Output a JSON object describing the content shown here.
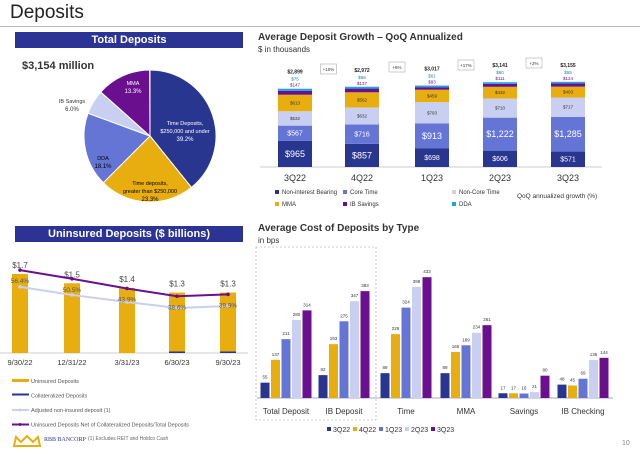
{
  "page": {
    "title": "Deposits",
    "page_number": "10",
    "footnote": "(1) Excludes REIT and Holdco Cash",
    "logo_text": "RBB BANCORP"
  },
  "colors": {
    "navy": "#28368f",
    "core": "#6575d6",
    "noncore": "#c9cff0",
    "mma": "#e8ae10",
    "ibsav": "#6a0f8e",
    "dda": "#1aa7e0",
    "header": "#2b3494"
  },
  "total_deposits": {
    "header": "Total Deposits",
    "amount": "$3,154 million"
  },
  "uninsured": {
    "header": "Uninsured Deposits ($ billions)"
  },
  "growth": {
    "title": "Average Deposit Growth – QoQ Annualized",
    "subtitle": "$ in thousands",
    "growth_label": "QoQ annualized growth (%)"
  },
  "cost": {
    "title": "Average Cost of Deposits by Type",
    "subtitle": "in bps"
  },
  "chart_data": [
    {
      "type": "pie",
      "slices": [
        {
          "label": "Time Deposits, $250,000 and under",
          "pct_label": "39.2%",
          "value": 39.2,
          "color": "#28368f"
        },
        {
          "label": "Time deposits, greater than $250,000",
          "pct_label": "23.3%",
          "value": 23.3,
          "color": "#e8ae10"
        },
        {
          "label": "DDA",
          "pct_label": "18.1%",
          "value": 18.1,
          "color": "#6575d6"
        },
        {
          "label": "IB Savings",
          "pct_label": "6.0%",
          "value": 6.0,
          "color": "#c9cff0"
        },
        {
          "label": "MMA",
          "pct_label": "13.3%",
          "value": 13.3,
          "color": "#6a0f8e"
        }
      ]
    },
    {
      "type": "bar+line",
      "categories": [
        "9/30/22",
        "12/31/22",
        "3/31/23",
        "6/30/23",
        "9/30/23"
      ],
      "series": [
        {
          "name": "Uninsured Deposits",
          "values": [
            1.7,
            1.5,
            1.4,
            1.3,
            1.3
          ],
          "labels": [
            "$1.7",
            "$1.5",
            "$1.4",
            "$1.3",
            "$1.3"
          ],
          "color": "#e8ae10"
        },
        {
          "name": "Collateralized Deposits",
          "values": [
            0,
            0,
            0,
            0.02,
            0.02
          ],
          "color": "#28368f"
        },
        {
          "name": "Adjusted non-insured deposit (1)",
          "values": [
            45,
            39.5,
            34.7,
            30.6,
            32
          ],
          "color": "#c9cff0"
        },
        {
          "name": "Uninsured Deposits Net of Collateralized Deposits/Total Deposits",
          "values": [
            56.4,
            50.5,
            43.9,
            38.6,
            39.9
          ],
          "labels": [
            "56.4%",
            "50.5%",
            "43.9%",
            "38.6%",
            "39.9%"
          ],
          "color": "#6a0f8e"
        }
      ]
    },
    {
      "type": "stacked-bar",
      "categories": [
        "3Q22",
        "4Q22",
        "1Q23",
        "2Q23",
        "3Q23"
      ],
      "totals": [
        "$2,899",
        "$2,972",
        "$3,017",
        "$3,141",
        "$3,155"
      ],
      "growth": [
        "+10%",
        "+6%",
        "+17%",
        "+2%"
      ],
      "series": [
        {
          "name": "Non-interest Bearing",
          "values": [
            965,
            857,
            698,
            606,
            571
          ],
          "color": "#28368f"
        },
        {
          "name": "Core Time",
          "values": [
            567,
            716,
            913,
            1222,
            1285
          ],
          "color": "#6575d6"
        },
        {
          "name": "Non-Core Time",
          "values": [
            532,
            632,
            793,
            710,
            717
          ],
          "color": "#c9cff0"
        },
        {
          "name": "MMA",
          "values": [
            613,
            562,
            459,
            432,
            403
          ],
          "color": "#e8ae10"
        },
        {
          "name": "IB Savings",
          "values": [
            147,
            137,
            93,
            111,
            124
          ],
          "color": "#6a0f8e"
        },
        {
          "name": "DDA",
          "values": [
            75,
            68,
            61,
            60,
            55
          ],
          "color": "#1aa7e0"
        }
      ]
    },
    {
      "type": "bar",
      "categories": [
        "Total Deposit",
        "IB Deposit",
        "Time",
        "MMA",
        "Savings",
        "IB Checking"
      ],
      "series": [
        {
          "name": "3Q22",
          "values": [
            55,
            82,
            89,
            89,
            17,
            48
          ],
          "color": "#28368f"
        },
        {
          "name": "4Q22",
          "values": [
            137,
            193,
            229,
            165,
            17,
            45
          ],
          "color": "#e8ae10"
        },
        {
          "name": "1Q23",
          "values": [
            211,
            275,
            324,
            189,
            16,
            69
          ],
          "color": "#6575d6"
        },
        {
          "name": "2Q23",
          "values": [
            280,
            347,
            398,
            234,
            21,
            136
          ],
          "color": "#c9cff0"
        },
        {
          "name": "3Q23",
          "values": [
            314,
            383,
            433,
            261,
            80,
            144
          ],
          "color": "#6a0f8e"
        }
      ]
    }
  ]
}
